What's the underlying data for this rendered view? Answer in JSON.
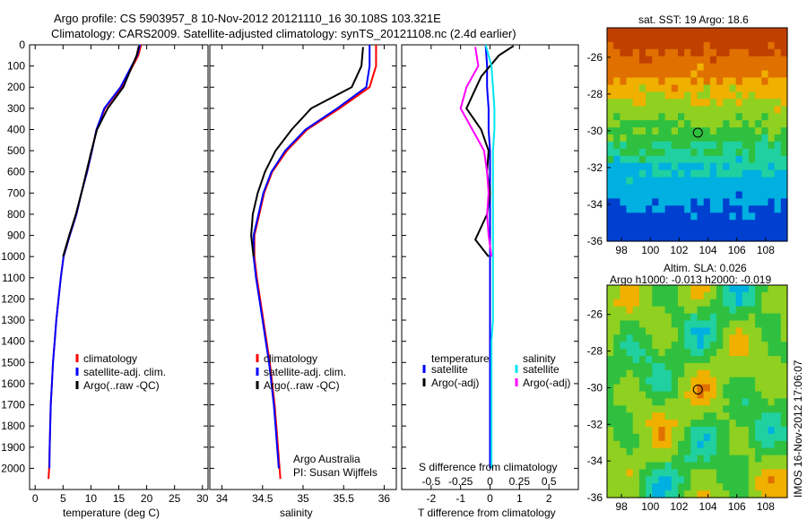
{
  "header": {
    "line1": "Argo profile: CS 5903957_8 10-Nov-2012 20121110_16 30.108S 103.321E",
    "line2": "Climatology: CARS2009. Satellite-adjusted climatology: synTS_20121108.nc (2.4d earlier)"
  },
  "colors": {
    "climatology": "#ff0000",
    "satellite": "#0000ff",
    "argo": "#000000",
    "sal_satellite": "#00e5ee",
    "sal_argo": "#ff00ff"
  },
  "chart_data": [
    {
      "type": "line",
      "xlabel": "temperature (deg C)",
      "ylim": [
        2100,
        0
      ],
      "xlim": [
        -1,
        31
      ],
      "xticks": [
        0,
        5,
        10,
        15,
        20,
        25,
        30
      ],
      "yticks": [
        0,
        100,
        200,
        300,
        400,
        500,
        600,
        700,
        800,
        900,
        1000,
        1100,
        1200,
        1300,
        1400,
        1500,
        1600,
        1700,
        1800,
        1900,
        2000
      ],
      "legend": [
        "climatology",
        "satellite-adj. clim.",
        "Argo(..raw -QC)"
      ],
      "series": [
        {
          "name": "climatology",
          "x": [
            19,
            18.5,
            15.5,
            12.5,
            11,
            10.2,
            9.3,
            8.3,
            7.4,
            6.2,
            5.1,
            4.6,
            4.2,
            3.8,
            3.5,
            3.2,
            3.0,
            2.8,
            2.7,
            2.6,
            2.5,
            2.4
          ],
          "y": [
            0,
            50,
            200,
            300,
            400,
            500,
            600,
            700,
            800,
            900,
            1000,
            1100,
            1200,
            1300,
            1400,
            1500,
            1600,
            1700,
            1800,
            1900,
            2000,
            2050
          ]
        },
        {
          "name": "satellite-adj. clim.",
          "x": [
            18.8,
            18.3,
            15.3,
            12.4,
            11,
            10.2,
            9.3,
            8.3,
            7.4,
            6.2,
            5.1,
            4.6,
            4.2,
            3.8,
            3.5,
            3.2,
            3.0,
            2.8,
            2.7,
            2.6,
            2.55
          ],
          "y": [
            0,
            50,
            200,
            300,
            400,
            500,
            600,
            700,
            800,
            900,
            1000,
            1100,
            1200,
            1300,
            1400,
            1500,
            1600,
            1700,
            1800,
            1900,
            2000
          ]
        },
        {
          "name": "Argo(..raw -QC)",
          "x": [
            18.6,
            18.2,
            15.8,
            13,
            11.1,
            10.1,
            9.2,
            8.3,
            7.3,
            6.1,
            5.0
          ],
          "y": [
            5,
            50,
            200,
            300,
            400,
            500,
            600,
            700,
            800,
            900,
            1000
          ]
        }
      ]
    },
    {
      "type": "line",
      "xlabel": "salinity",
      "ylim": [
        2100,
        0
      ],
      "xlim": [
        33.85,
        36.15
      ],
      "xticks": [
        34,
        34.5,
        35,
        35.5,
        36
      ],
      "legend": [
        "climatology",
        "satellite-adj. clim.",
        "Argo(..raw -QC)"
      ],
      "annotation": [
        "Argo Australia",
        "PI: Susan Wijffels"
      ],
      "series": [
        {
          "name": "climatology",
          "x": [
            35.9,
            35.9,
            35.82,
            35.45,
            35.05,
            34.8,
            34.62,
            34.52,
            34.46,
            34.4,
            34.4,
            34.43,
            34.47,
            34.51,
            34.55,
            34.59,
            34.62,
            34.65,
            34.67,
            34.69,
            34.71,
            34.72
          ],
          "y": [
            0,
            100,
            200,
            300,
            400,
            500,
            600,
            700,
            800,
            900,
            1000,
            1100,
            1200,
            1300,
            1400,
            1500,
            1600,
            1700,
            1800,
            1900,
            2000,
            2050
          ]
        },
        {
          "name": "satellite-adj. clim.",
          "x": [
            35.82,
            35.82,
            35.78,
            35.42,
            35.03,
            34.78,
            34.61,
            34.51,
            34.45,
            34.39,
            34.39,
            34.42,
            34.46,
            34.5,
            34.54,
            34.58,
            34.61,
            34.64,
            34.66,
            34.68,
            34.7
          ],
          "y": [
            0,
            100,
            200,
            300,
            400,
            500,
            600,
            700,
            800,
            900,
            1000,
            1100,
            1200,
            1300,
            1400,
            1500,
            1600,
            1700,
            1800,
            1900,
            2000
          ]
        },
        {
          "name": "Argo(..raw -QC)",
          "x": [
            35.74,
            35.72,
            35.6,
            35.1,
            34.86,
            34.66,
            34.53,
            34.44,
            34.38,
            34.36,
            34.39
          ],
          "y": [
            10,
            100,
            200,
            300,
            400,
            500,
            600,
            700,
            800,
            900,
            1000
          ]
        }
      ]
    },
    {
      "type": "line",
      "xlabel": "T difference from climatology",
      "xlabel2": "S difference from climatology",
      "ylim": [
        2100,
        0
      ],
      "xlim": [
        -3,
        3
      ],
      "xticks": [
        -2,
        -1,
        0,
        1,
        2
      ],
      "xticks2": [
        "-0.5",
        "-0.25",
        "0",
        "0.25",
        "0.5"
      ],
      "legend_titles": [
        "temperature",
        "salinity"
      ],
      "legend_temperature": [
        "satellite",
        "Argo(-adj)"
      ],
      "legend_salinity": [
        "satellite",
        "Argo(-adj)"
      ],
      "series": [
        {
          "name": "temperature satellite",
          "x": [
            -0.15,
            -0.1,
            -0.1,
            -0.05,
            -0.05,
            0,
            0,
            0,
            0,
            0,
            0,
            0,
            0,
            0,
            0,
            0,
            0,
            0,
            0,
            0,
            0
          ],
          "y": [
            0,
            100,
            200,
            300,
            400,
            500,
            600,
            700,
            800,
            900,
            1000,
            1100,
            1200,
            1300,
            1400,
            1500,
            1600,
            1700,
            1800,
            1900,
            2000
          ]
        },
        {
          "name": "temperature Argo(-adj)",
          "x": [
            0.8,
            0.3,
            -0.3,
            -0.8,
            -0.3,
            -0.05,
            -0.1,
            0,
            -0.1,
            -0.5,
            -0.05
          ],
          "y": [
            5,
            50,
            150,
            300,
            400,
            500,
            600,
            700,
            800,
            920,
            1000
          ]
        },
        {
          "name": "salinity satellite",
          "x": [
            -0.15,
            0.05,
            0.1,
            0.15,
            0.15,
            0.1,
            0.1,
            0.1,
            0.1,
            0.1,
            0.1,
            0.1,
            0.1,
            0.1,
            0.05,
            0.05,
            0.05,
            0.05,
            0.05,
            0.05,
            0.05
          ],
          "y": [
            0,
            100,
            200,
            300,
            400,
            500,
            600,
            700,
            800,
            900,
            1000,
            1100,
            1200,
            1300,
            1400,
            1500,
            1600,
            1700,
            1800,
            1900,
            2000
          ]
        },
        {
          "name": "salinity Argo(-adj)",
          "x": [
            -0.5,
            -0.4,
            -0.8,
            -1.0,
            -0.6,
            -0.2,
            -0.1,
            -0.05,
            -0.1,
            -0.05,
            0.05
          ],
          "y": [
            10,
            100,
            200,
            300,
            400,
            500,
            600,
            700,
            800,
            900,
            1000
          ]
        }
      ]
    },
    {
      "type": "heatmap",
      "title": "sat. SST: 19 Argo: 18.6",
      "xticks": [
        98,
        100,
        102,
        104,
        106,
        108
      ],
      "yticks": [
        -26,
        -28,
        -30,
        -32,
        -34,
        -36
      ],
      "xlim": [
        97,
        109.5
      ],
      "ylim": [
        -36,
        -24.4
      ],
      "marker": {
        "lon": 103.3,
        "lat": -30.1
      }
    },
    {
      "type": "heatmap",
      "title": "Altim. SLA: 0.026",
      "subtitle": "Argo h1000: -0.013 h2000: -0.019",
      "xticks": [
        98,
        100,
        102,
        104,
        106,
        108
      ],
      "yticks": [
        -26,
        -28,
        -30,
        -32,
        -34,
        -36
      ],
      "xlim": [
        97,
        109.5
      ],
      "ylim": [
        -36,
        -24.4
      ],
      "marker": {
        "lon": 103.3,
        "lat": -30.1
      }
    }
  ],
  "footer": {
    "stamp": "IMOS 16-Nov-2012 17:06:07"
  }
}
